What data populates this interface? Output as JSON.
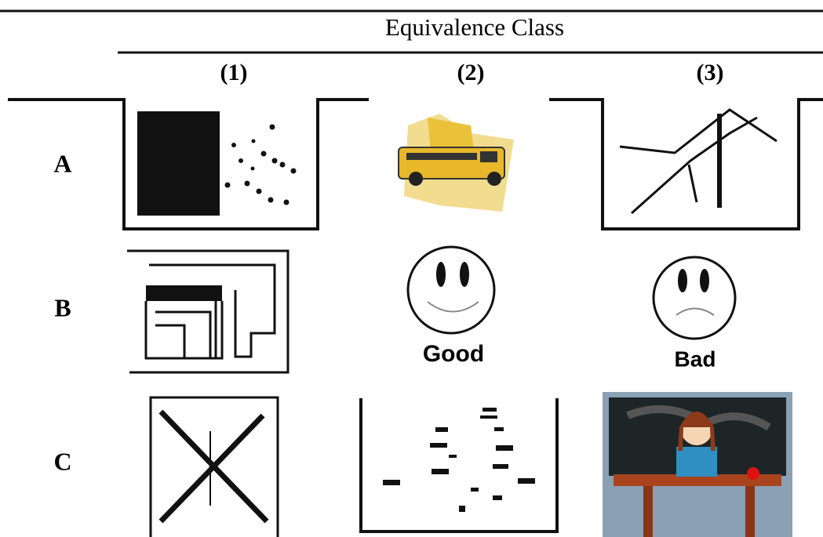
{
  "header": {
    "title": "Equivalence Class",
    "columns": [
      "(1)",
      "(2)",
      "(3)"
    ]
  },
  "rows": [
    "A",
    "B",
    "C"
  ],
  "captions": [
    "Good",
    "Bad"
  ]
}
